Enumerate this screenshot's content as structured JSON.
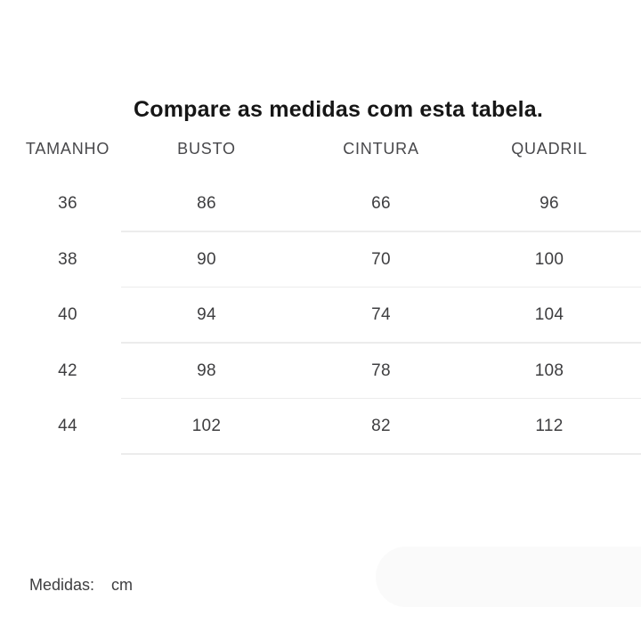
{
  "title": "Compare as medidas com esta tabela.",
  "table": {
    "headers": [
      "TAMANHO",
      "BUSTO",
      "CINTURA",
      "QUADRIL"
    ],
    "rows": [
      [
        "36",
        "86",
        "66",
        "96"
      ],
      [
        "38",
        "90",
        "70",
        "100"
      ],
      [
        "40",
        "94",
        "74",
        "104"
      ],
      [
        "42",
        "98",
        "78",
        "108"
      ],
      [
        "44",
        "102",
        "82",
        "112"
      ]
    ]
  },
  "footer": {
    "label": "Medidas:",
    "unit": "cm"
  },
  "colors": {
    "background": "#ffffff",
    "title": "#161616",
    "header_text": "#48484b",
    "cell_text": "#3e3e40",
    "divider": "#ececec",
    "pill": "#fafafa"
  }
}
